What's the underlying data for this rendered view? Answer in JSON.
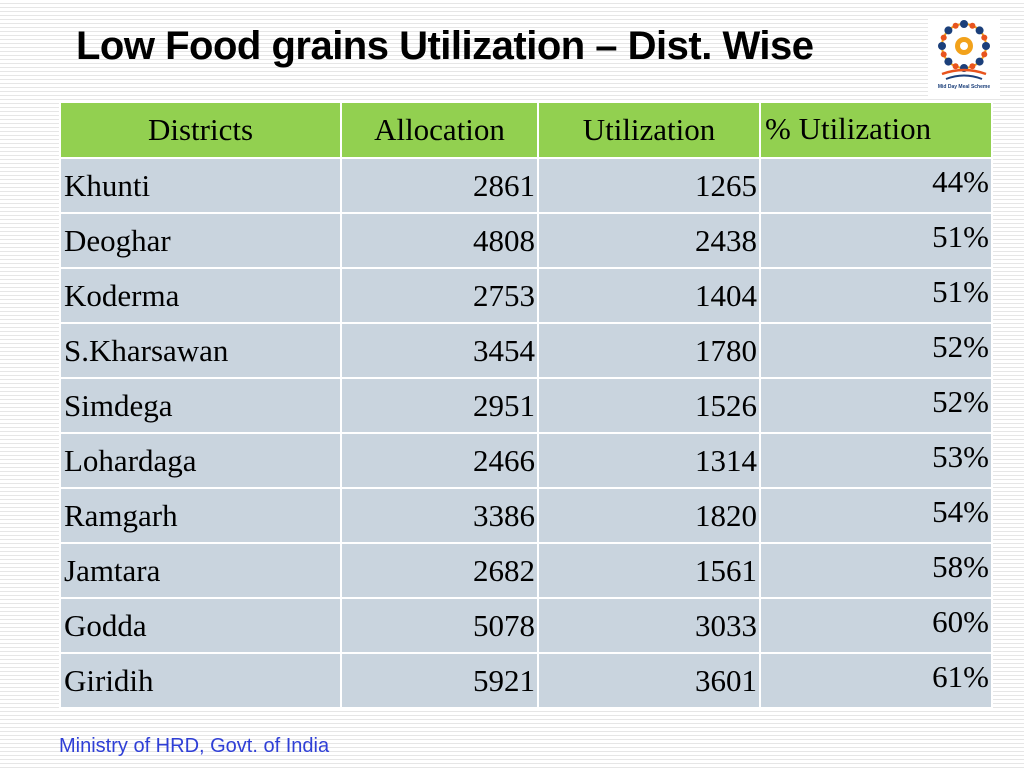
{
  "slide": {
    "title": "Low Food grains Utilization – Dist. Wise",
    "footer": "Ministry of HRD, Govt. of India",
    "logo_icon": "mid-day-meal-scheme-logo",
    "logo_caption": "Mid Day Meal Scheme"
  },
  "colors": {
    "header_bg": "#92d050",
    "row_bg": "#c9d4de",
    "footer_text": "#2f3fd6"
  },
  "table": {
    "headers": [
      "Districts",
      "Allocation",
      "Utilization",
      "%  Utilization"
    ],
    "rows": [
      {
        "district": "Khunti",
        "allocation": "2861",
        "utilization": "1265",
        "pct": "44%"
      },
      {
        "district": "Deoghar",
        "allocation": "4808",
        "utilization": "2438",
        "pct": "51%"
      },
      {
        "district": "Koderma",
        "allocation": "2753",
        "utilization": "1404",
        "pct": "51%"
      },
      {
        "district": "S.Kharsawan",
        "allocation": "3454",
        "utilization": "1780",
        "pct": "52%"
      },
      {
        "district": "Simdega",
        "allocation": "2951",
        "utilization": "1526",
        "pct": "52%"
      },
      {
        "district": "Lohardaga",
        "allocation": "2466",
        "utilization": "1314",
        "pct": "53%"
      },
      {
        "district": "Ramgarh",
        "allocation": "3386",
        "utilization": "1820",
        "pct": "54%"
      },
      {
        "district": "Jamtara",
        "allocation": "2682",
        "utilization": "1561",
        "pct": "58%"
      },
      {
        "district": "Godda",
        "allocation": "5078",
        "utilization": "3033",
        "pct": "60%"
      },
      {
        "district": "Giridih",
        "allocation": "5921",
        "utilization": "3601",
        "pct": "61%"
      }
    ]
  }
}
